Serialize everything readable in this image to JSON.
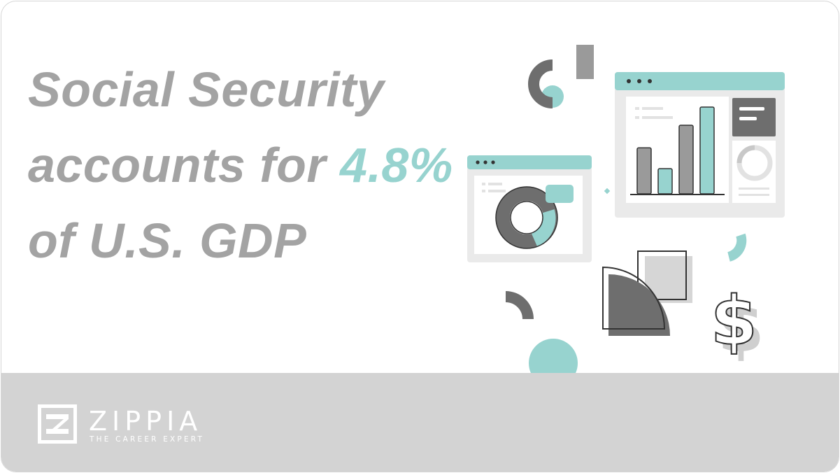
{
  "headline": {
    "line1": "Social Security",
    "line2_prefix": "accounts for ",
    "line2_value": "4.8%",
    "line3": "of U.S. GDP"
  },
  "logo": {
    "wordmark": "ZIPPIA",
    "tagline": "THE CAREER EXPERT"
  },
  "illustration": {
    "symbol": "$",
    "bar_values": [
      0.53,
      0.29,
      0.79,
      1.0
    ],
    "icons": [
      "bar-chart-window",
      "donut-chart-window",
      "dollar-sign-icon",
      "decorative-shapes"
    ]
  },
  "colors": {
    "accent": "#97d3cf",
    "headline": "#a3a3a3",
    "dark_gray": "#6e6e6e",
    "light_gray": "#eaeaea",
    "footer": "#d3d3d3"
  }
}
